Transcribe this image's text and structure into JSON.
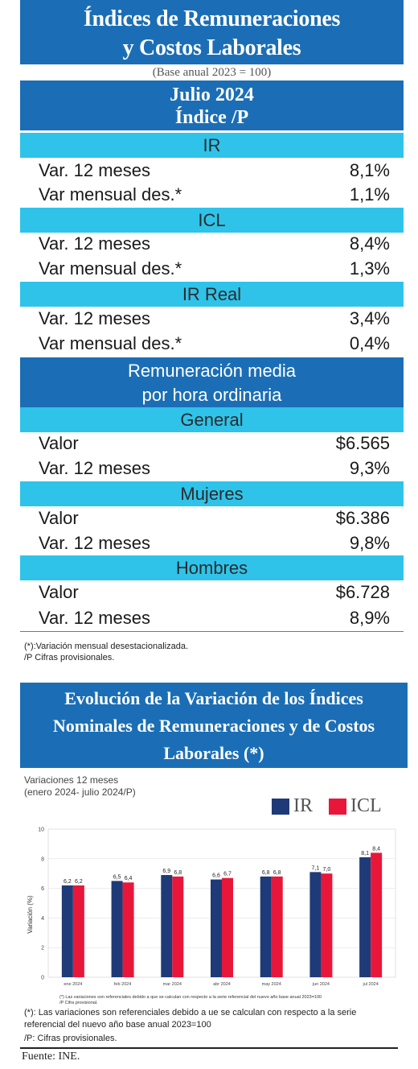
{
  "header": {
    "title_line1": "Índices de Remuneraciones",
    "title_line2": "y Costos Laborales",
    "base": "(Base anual 2023 = 100)",
    "period": "Julio 2024",
    "index_label": "Índice /P"
  },
  "sections": {
    "ir": {
      "label": "IR",
      "rows": [
        {
          "label": "Var. 12 meses",
          "value": "8,1%"
        },
        {
          "label": "Var mensual des.*",
          "value": "1,1%"
        }
      ]
    },
    "icl": {
      "label": "ICL",
      "rows": [
        {
          "label": "Var. 12 meses",
          "value": "8,4%"
        },
        {
          "label": "Var mensual des.*",
          "value": "1,3%"
        }
      ]
    },
    "ir_real": {
      "label": "IR Real",
      "rows": [
        {
          "label": "Var. 12 meses",
          "value": "3,4%"
        },
        {
          "label": "Var mensual des.*",
          "value": "0,4%"
        }
      ]
    }
  },
  "remuneracion": {
    "title_line1": "Remuneración media",
    "title_line2": "por hora ordinaria",
    "general": {
      "label": "General",
      "rows": [
        {
          "label": "Valor",
          "value": "$6.565"
        },
        {
          "label": "Var. 12 meses",
          "value": "9,3%"
        }
      ]
    },
    "mujeres": {
      "label": "Mujeres",
      "rows": [
        {
          "label": "Valor",
          "value": "$6.386"
        },
        {
          "label": "Var. 12 meses",
          "value": "9,8%"
        }
      ]
    },
    "hombres": {
      "label": "Hombres",
      "rows": [
        {
          "label": "Valor",
          "value": "$6.728"
        },
        {
          "label": "Var. 12 meses",
          "value": "8,9%"
        }
      ]
    }
  },
  "footnotes": {
    "note1": "(*):Variación mensual desestacionalizada.",
    "note2": "/P Cifras provisionales."
  },
  "chart_section": {
    "title_line1": "Evolución de la Variación de los Índices",
    "title_line2": "Nominales de Remuneraciones y de Costos",
    "title_line3": "Laborales (*)",
    "subtitle1": "Variaciones 12 meses",
    "subtitle2": "(enero 2024- julio 2024/P)",
    "inner_note_1": "(*) Las variaciones son referenciales debido a que se calculan con respecto a la serie referencial del nuevo año base anual 2023=100",
    "inner_note_2": "/P Cifra provisional.",
    "note1": "(*): Las variaciones son referenciales debido a ue se calculan con respecto a la serie",
    "note2": "referencial del nuevo año base anual 2023=100",
    "note3": "/P:  Cifras provisionales."
  },
  "chart_data": {
    "type": "bar",
    "categories": [
      "ene 2024",
      "feb 2024",
      "mar 2024",
      "abr 2024",
      "may 2024",
      "jun 2024",
      "jul 2024"
    ],
    "series": [
      {
        "name": "IR",
        "values": [
          6.2,
          6.5,
          6.9,
          6.6,
          6.8,
          7.1,
          8.1
        ],
        "labels": [
          "6,2",
          "6,5",
          "6,9",
          "6,6",
          "6,8",
          "7,1",
          "8,1"
        ],
        "color": "#1f3a78"
      },
      {
        "name": "ICL",
        "values": [
          6.2,
          6.4,
          6.8,
          6.7,
          6.8,
          7.0,
          8.4
        ],
        "labels": [
          "6,2",
          "6,4",
          "6,8",
          "6,7",
          "6,8",
          "7,0",
          "8,4"
        ],
        "color": "#e8173a"
      }
    ],
    "ylabel": "Variación (%)",
    "ylim": [
      0,
      10
    ],
    "yticks": [
      0,
      2,
      4,
      6,
      8,
      10
    ],
    "grid": true,
    "legend": "top-right"
  },
  "source": "Fuente: INE.",
  "colors": {
    "header_blue": "#1b6eb5",
    "section_cyan": "#2fc3ea",
    "ir_bar": "#1f3a78",
    "icl_bar": "#e8173a"
  }
}
